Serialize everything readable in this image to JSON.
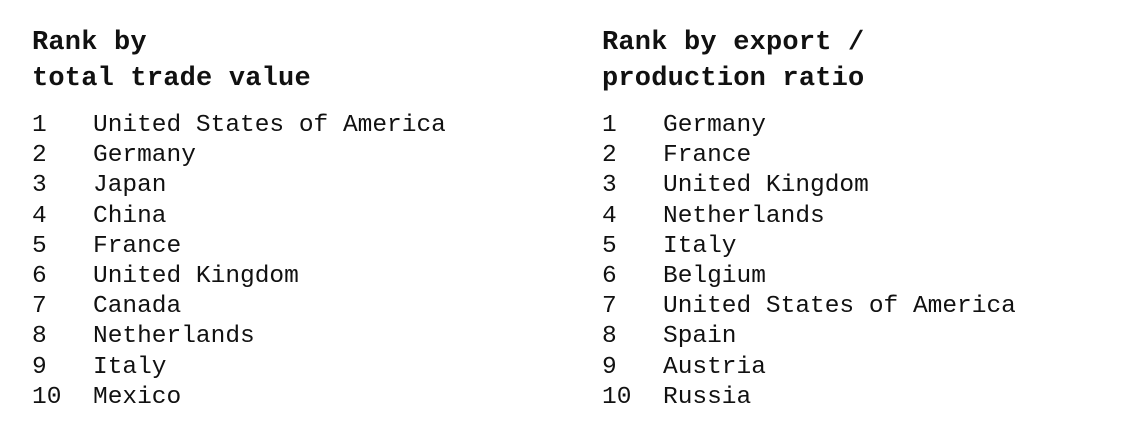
{
  "left_table": {
    "heading_line1": "Rank by",
    "heading_line2": "total trade value",
    "rows": [
      {
        "rank": "1",
        "country": "United States of America"
      },
      {
        "rank": "2",
        "country": "Germany"
      },
      {
        "rank": "3",
        "country": "Japan"
      },
      {
        "rank": "4",
        "country": "China"
      },
      {
        "rank": "5",
        "country": "France"
      },
      {
        "rank": "6",
        "country": "United Kingdom"
      },
      {
        "rank": "7",
        "country": "Canada"
      },
      {
        "rank": "8",
        "country": "Netherlands"
      },
      {
        "rank": "9",
        "country": "Italy"
      },
      {
        "rank": "10",
        "country": "Mexico"
      }
    ]
  },
  "right_table": {
    "heading_line1": "Rank by export /",
    "heading_line2": "production ratio",
    "rows": [
      {
        "rank": "1",
        "country": "Germany"
      },
      {
        "rank": "2",
        "country": "France"
      },
      {
        "rank": "3",
        "country": "United Kingdom"
      },
      {
        "rank": "4",
        "country": "Netherlands"
      },
      {
        "rank": "5",
        "country": "Italy"
      },
      {
        "rank": "6",
        "country": "Belgium"
      },
      {
        "rank": "7",
        "country": "United States of America"
      },
      {
        "rank": "8",
        "country": "Spain"
      },
      {
        "rank": "9",
        "country": "Austria"
      },
      {
        "rank": "10",
        "country": "Russia"
      }
    ]
  }
}
